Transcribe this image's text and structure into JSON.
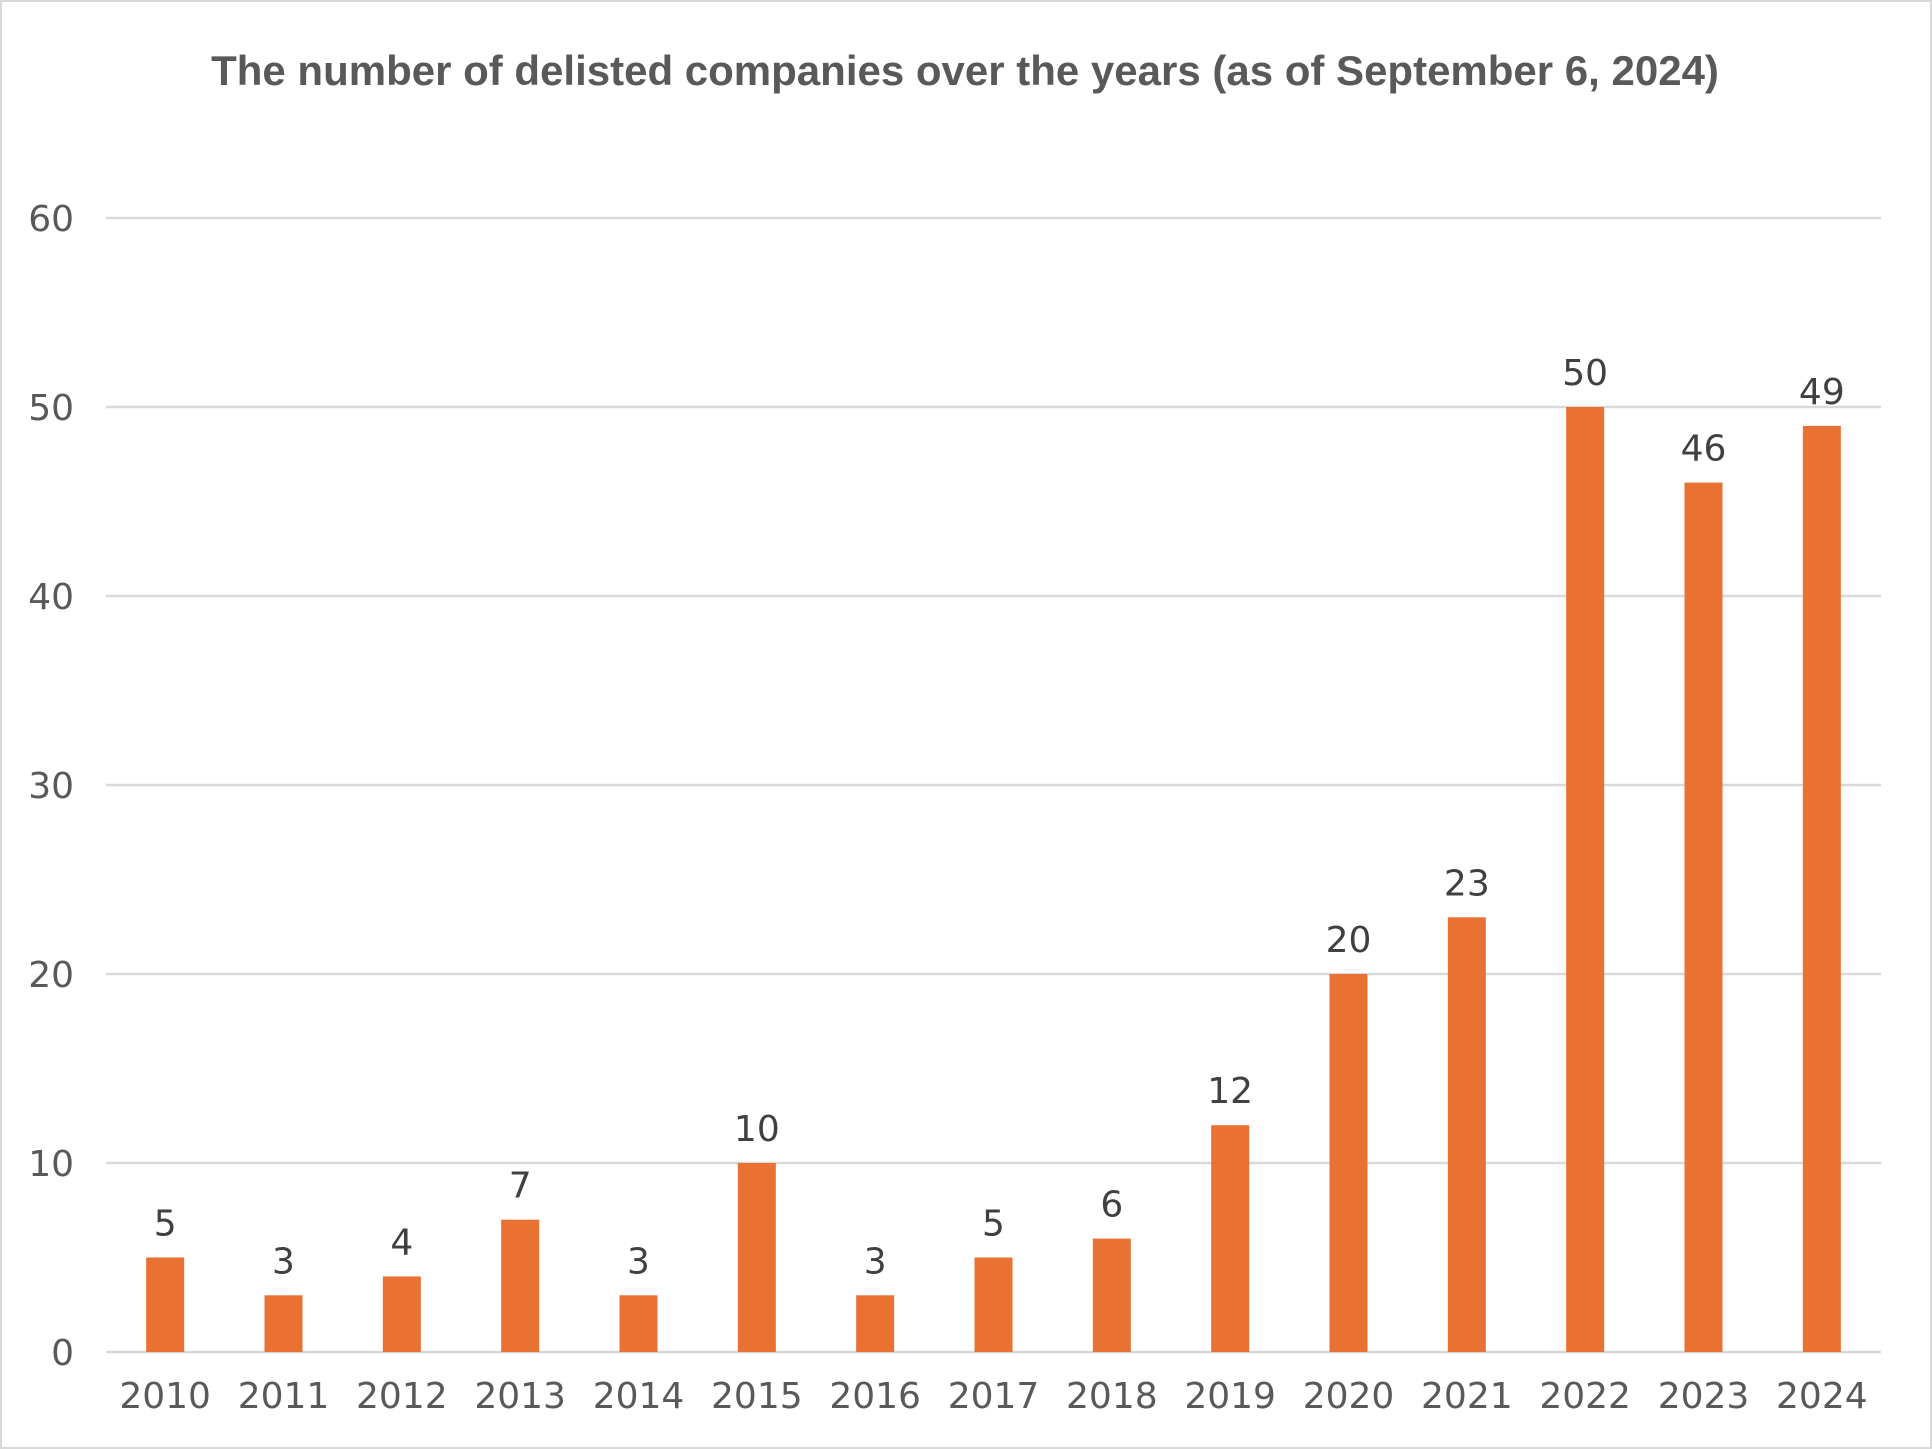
{
  "chart_data": {
    "type": "bar",
    "title": "The number of delisted companies over the years (as of September 6, 2024)",
    "xlabel": "",
    "ylabel": "",
    "categories": [
      "2010",
      "2011",
      "2012",
      "2013",
      "2014",
      "2015",
      "2016",
      "2017",
      "2018",
      "2019",
      "2020",
      "2021",
      "2022",
      "2023",
      "2024"
    ],
    "values": [
      5,
      3,
      4,
      7,
      3,
      10,
      3,
      5,
      6,
      12,
      20,
      23,
      50,
      46,
      49
    ],
    "ylim": [
      0,
      60
    ],
    "yticks": [
      0,
      10,
      20,
      30,
      40,
      50,
      60
    ],
    "grid": true,
    "data_labels": true,
    "legend": "none",
    "bar_color": "#E97132",
    "grid_color": "#d9d9d9"
  }
}
